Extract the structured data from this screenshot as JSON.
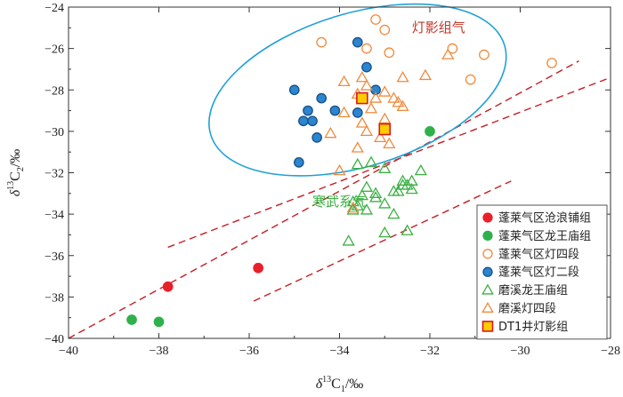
{
  "chart_data": {
    "type": "scatter",
    "title": "",
    "xlabel_parts": {
      "delta": "δ",
      "sup": "13",
      "elem": "C",
      "sub": "1",
      "unit": "/‰"
    },
    "ylabel_parts": {
      "delta": "δ",
      "sup": "13",
      "elem": "C",
      "sub": "2",
      "unit": "/‰"
    },
    "xlim": [
      -40,
      -28
    ],
    "ylim": [
      -40,
      -24
    ],
    "xticks": [
      -40,
      -38,
      -36,
      -34,
      -32,
      -30,
      -28
    ],
    "yticks": [
      -40,
      -38,
      -36,
      -34,
      -32,
      -30,
      -28,
      -26,
      -24
    ],
    "annotations": [
      {
        "text": "灯影组气",
        "x": -32.4,
        "y": -25.2,
        "color": "#c0392b"
      },
      {
        "text": "寒武系气",
        "x": -34.6,
        "y": -33.6,
        "color": "#3cb043"
      }
    ],
    "ellipse": {
      "cx": -33.6,
      "cy": -28.0,
      "rx": 3.4,
      "ry": 3.7,
      "angle_deg": -17,
      "color": "#1fa0d8"
    },
    "reference_lines": [
      {
        "x": [
          -40,
          -28.7
        ],
        "y": [
          -40,
          -26.6
        ]
      },
      {
        "x": [
          -37.8,
          -28
        ],
        "y": [
          -35.6,
          -27.4
        ]
      },
      {
        "x": [
          -35.9,
          -30.2
        ],
        "y": [
          -38.2,
          -32.4
        ]
      }
    ],
    "legend_position": "bottom-right",
    "series": [
      {
        "name": "蓬莱气区沧浪铺组",
        "marker": "circle",
        "fill": "#e8202a",
        "stroke": "#e8202a",
        "x": [
          -37.8,
          -35.8
        ],
        "y": [
          -37.5,
          -36.6
        ]
      },
      {
        "name": "蓬莱气区龙王庙组",
        "marker": "circle",
        "fill": "#2eb14b",
        "stroke": "#2eb14b",
        "x": [
          -38.6,
          -38.0,
          -32.0
        ],
        "y": [
          -39.1,
          -39.2,
          -30.0
        ]
      },
      {
        "name": "蓬莱气区灯四段",
        "marker": "circle",
        "fill": "none",
        "stroke": "#f08a3c",
        "x": [
          -34.4,
          -33.2,
          -33.0,
          -33.4,
          -32.9,
          -31.5,
          -30.8,
          -29.3,
          -31.1
        ],
        "y": [
          -25.7,
          -24.6,
          -25.1,
          -26.0,
          -26.2,
          -26.0,
          -26.3,
          -26.7,
          -27.5
        ]
      },
      {
        "name": "蓬莱气区灯二段",
        "marker": "circle",
        "fill": "#2b85cf",
        "stroke": "#1a4f86",
        "x": [
          -33.6,
          -33.4,
          -33.2,
          -35.0,
          -34.7,
          -34.4,
          -34.1,
          -34.8,
          -34.6,
          -34.5,
          -33.6,
          -34.9
        ],
        "y": [
          -25.7,
          -26.9,
          -28.0,
          -28.0,
          -29.0,
          -28.4,
          -29.0,
          -29.5,
          -29.5,
          -30.3,
          -29.1,
          -31.5
        ]
      },
      {
        "name": "磨溪龙王庙组",
        "marker": "triangle",
        "fill": "none",
        "stroke": "#3cb043",
        "x": [
          -33.6,
          -33.3,
          -33.0,
          -32.2,
          -32.6,
          -32.5,
          -32.4,
          -32.8,
          -33.4,
          -33.2,
          -33.5,
          -33.7,
          -33.6,
          -33.4,
          -33.0,
          -33.2,
          -32.7,
          -32.6,
          -32.4,
          -32.8,
          -33.7,
          -32.5,
          -33.0,
          -33.8
        ],
        "y": [
          -31.6,
          -31.5,
          -31.8,
          -31.9,
          -32.4,
          -32.6,
          -32.8,
          -32.9,
          -32.7,
          -33.0,
          -33.1,
          -33.4,
          -33.6,
          -33.8,
          -33.5,
          -33.2,
          -32.9,
          -32.6,
          -32.4,
          -34.0,
          -33.8,
          -34.8,
          -34.9,
          -35.3
        ]
      },
      {
        "name": "磨溪灯四段",
        "marker": "triangle",
        "fill": "none",
        "stroke": "#f08a3c",
        "x": [
          -33.9,
          -33.5,
          -33.4,
          -32.6,
          -32.1,
          -31.6,
          -33.0,
          -32.8,
          -32.7,
          -32.6,
          -33.2,
          -33.6,
          -33.3,
          -33.9,
          -33.0,
          -33.5,
          -34.2,
          -33.4,
          -33.1,
          -32.9,
          -33.6,
          -34.0,
          -33.7
        ],
        "y": [
          -27.6,
          -27.4,
          -27.8,
          -27.4,
          -27.3,
          -26.3,
          -28.1,
          -28.4,
          -28.6,
          -28.8,
          -28.4,
          -28.2,
          -28.9,
          -29.1,
          -29.4,
          -29.6,
          -30.1,
          -30.0,
          -30.3,
          -30.6,
          -30.8,
          -31.9,
          -33.7
        ]
      },
      {
        "name": "DT1井灯影组",
        "marker": "square",
        "fill": "#ffcc00",
        "stroke": "#d7191c",
        "x": [
          -33.5,
          -33.0
        ],
        "y": [
          -28.4,
          -29.9
        ]
      }
    ]
  }
}
